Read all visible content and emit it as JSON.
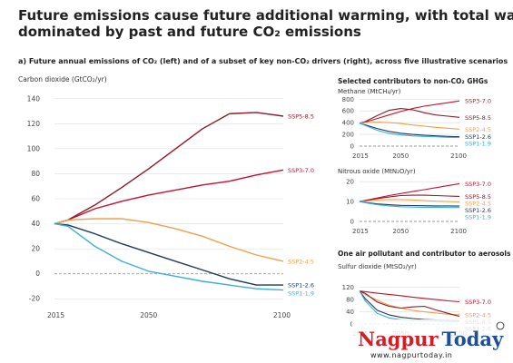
{
  "title_line1": "Future emissions cause future additional warming, with total warming",
  "title_line2": "dominated by past and future CO₂ emissions",
  "subtitle": "a) Future annual emissions of CO₂ (left) and of a subset of key non-CO₂ drivers (right), across five illustrative scenarios",
  "right_header": "Selected contributors to non-CO₂ GHGs",
  "aerosol_header": "One air pollutant and contributor to aerosols",
  "logo": {
    "brand": "Nagpur Today",
    "url": "www.nagpurtoday.in",
    "red": "#d71d24",
    "blue": "#1f4e9c"
  },
  "colors": {
    "SSP3-7.0": "#c8102e",
    "SSP5-8.5": "#8b1a2b",
    "SSP2-4.5": "#f0a04b",
    "SSP1-2.6": "#1e3a5f",
    "SSP1-1.9": "#3ab0d6"
  },
  "chart_data": [
    {
      "type": "line",
      "id": "co2",
      "ylabel": "Carbon dioxide (GtCO₂/yr)",
      "x": [
        2015,
        2020,
        2030,
        2040,
        2050,
        2060,
        2070,
        2080,
        2090,
        2100
      ],
      "xticks": [
        "2015",
        "2050",
        "2100"
      ],
      "yticks": [
        -20,
        0,
        20,
        40,
        60,
        80,
        100,
        120,
        140
      ],
      "ylim": [
        -22,
        142
      ],
      "series": [
        {
          "name": "SSP5-8.5",
          "values": [
            40,
            43,
            55,
            69,
            84,
            100,
            116,
            128,
            129,
            126
          ]
        },
        {
          "name": "SSP3-7.0",
          "values": [
            40,
            43,
            52,
            58,
            63,
            67,
            71,
            74,
            79,
            83
          ]
        },
        {
          "name": "SSP2-4.5",
          "values": [
            40,
            43,
            44,
            44,
            41,
            36,
            30,
            22,
            15,
            10
          ]
        },
        {
          "name": "SSP1-2.6",
          "values": [
            40,
            39,
            32,
            24,
            17,
            10,
            3,
            -4,
            -9,
            -9
          ]
        },
        {
          "name": "SSP1-1.9",
          "values": [
            40,
            38,
            22,
            10,
            2,
            -2,
            -6,
            -9,
            -12,
            -13
          ]
        }
      ]
    },
    {
      "type": "line",
      "id": "methane",
      "ylabel": "Methane (MtCH₄/yr)",
      "x": [
        2015,
        2020,
        2030,
        2040,
        2050,
        2060,
        2070,
        2080,
        2090,
        2100
      ],
      "xticks": [
        "2015",
        "2050",
        "2100"
      ],
      "yticks": [
        0,
        200,
        400,
        600,
        800
      ],
      "ylim": [
        0,
        820
      ],
      "series": [
        {
          "name": "SSP3-7.0",
          "values": [
            390,
            410,
            470,
            530,
            590,
            640,
            680,
            710,
            740,
            770
          ]
        },
        {
          "name": "SSP5-8.5",
          "values": [
            390,
            420,
            520,
            610,
            640,
            620,
            570,
            530,
            510,
            490
          ]
        },
        {
          "name": "SSP2-4.5",
          "values": [
            390,
            400,
            410,
            400,
            385,
            360,
            340,
            320,
            305,
            290
          ]
        },
        {
          "name": "SSP1-2.6",
          "values": [
            390,
            360,
            300,
            250,
            220,
            200,
            185,
            175,
            165,
            160
          ]
        },
        {
          "name": "SSP1-1.9",
          "values": [
            390,
            350,
            270,
            215,
            190,
            175,
            165,
            160,
            150,
            145
          ]
        }
      ]
    },
    {
      "type": "line",
      "id": "n2o",
      "ylabel": "Nitrous oxide (MtN₂O/yr)",
      "x": [
        2015,
        2020,
        2030,
        2040,
        2050,
        2060,
        2070,
        2080,
        2090,
        2100
      ],
      "xticks": [
        "2015",
        "2050",
        "2100"
      ],
      "yticks": [
        0,
        10,
        20
      ],
      "ylim": [
        0,
        21
      ],
      "series": [
        {
          "name": "SSP3-7.0",
          "values": [
            10,
            10.6,
            11.8,
            13,
            14,
            15,
            16,
            17,
            18,
            19
          ]
        },
        {
          "name": "SSP5-8.5",
          "values": [
            10,
            10.5,
            11.5,
            12.3,
            13,
            13.2,
            13.2,
            13,
            12.8,
            12.6
          ]
        },
        {
          "name": "SSP2-4.5",
          "values": [
            10,
            10.2,
            10.8,
            11,
            11,
            10.8,
            10.5,
            10.2,
            10,
            9.8
          ]
        },
        {
          "name": "SSP1-2.6",
          "values": [
            10,
            9.6,
            8.8,
            8.4,
            8.1,
            8,
            7.9,
            7.8,
            7.8,
            7.7
          ]
        },
        {
          "name": "SSP1-1.9",
          "values": [
            10,
            9.4,
            8.4,
            7.8,
            7.4,
            7.2,
            7.1,
            7.1,
            7,
            7
          ]
        }
      ]
    },
    {
      "type": "line",
      "id": "so2",
      "ylabel": "Sulfur dioxide (MtSO₂/yr)",
      "x": [
        2015,
        2020,
        2030,
        2040,
        2050,
        2060,
        2070,
        2080,
        2090,
        2100
      ],
      "xticks": [
        "2015",
        "2050",
        "2100"
      ],
      "yticks": [
        0,
        40,
        80,
        120
      ],
      "ylim": [
        0,
        125
      ],
      "series": [
        {
          "name": "SSP3-7.0",
          "values": [
            108,
            106,
            101,
            97,
            93,
            88,
            84,
            80,
            76,
            73
          ]
        },
        {
          "name": "SSP2-4.5",
          "values": [
            108,
            96,
            78,
            62,
            52,
            45,
            40,
            36,
            32,
            30
          ]
        },
        {
          "name": "SSP5-8.5",
          "values": [
            108,
            100,
            72,
            58,
            52,
            56,
            58,
            46,
            35,
            25
          ]
        },
        {
          "name": "SSP1-2.6",
          "values": [
            108,
            82,
            45,
            30,
            22,
            18,
            15,
            13,
            12,
            11
          ]
        },
        {
          "name": "SSP1-1.9",
          "values": [
            108,
            75,
            35,
            20,
            14,
            11,
            10,
            9,
            8,
            8
          ]
        }
      ]
    }
  ]
}
